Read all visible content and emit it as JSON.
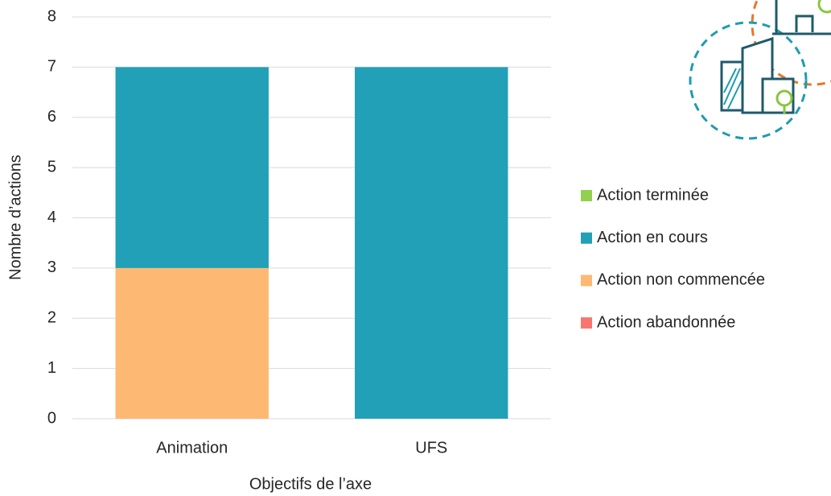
{
  "chart_data": {
    "type": "stacked_bar",
    "categories": [
      "Animation",
      "UFS"
    ],
    "series": [
      {
        "name": "Action terminée",
        "color": "#92d050",
        "values": [
          0,
          0
        ]
      },
      {
        "name": "Action en cours",
        "color": "#21a0b7",
        "values": [
          4,
          7
        ]
      },
      {
        "name": "Action non commencée",
        "color": "#fdb873",
        "values": [
          3,
          0
        ]
      },
      {
        "name": "Action abandonnée",
        "color": "#f8766d",
        "values": [
          0,
          0
        ]
      }
    ],
    "ylim": [
      0,
      8
    ],
    "yticks": [
      0,
      1,
      2,
      3,
      4,
      5,
      6,
      7,
      8
    ],
    "grid": true,
    "ylabel": "Nombre d’actions",
    "xlabel": "Objectifs de l’axe",
    "legend": "right"
  }
}
